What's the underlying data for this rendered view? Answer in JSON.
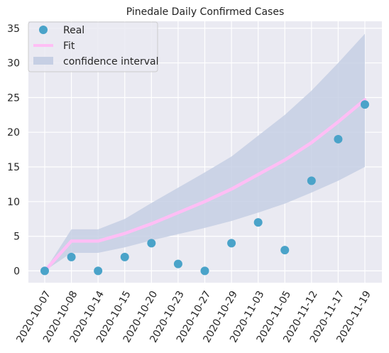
{
  "chart_data": {
    "type": "line",
    "title": "Pinedale Daily Confirmed Cases",
    "xlabel": "",
    "ylabel": "",
    "categories": [
      "2020-10-07",
      "2020-10-08",
      "2020-10-14",
      "2020-10-15",
      "2020-10-20",
      "2020-10-23",
      "2020-10-27",
      "2020-10-29",
      "2020-11-03",
      "2020-11-05",
      "2020-11-12",
      "2020-11-17",
      "2020-11-19"
    ],
    "ylim": [
      -1.7,
      36
    ],
    "yticks": [
      0,
      5,
      10,
      15,
      20,
      25,
      30,
      35
    ],
    "grid": true,
    "legend_position": "top-left",
    "series": [
      {
        "name": "Real",
        "kind": "scatter",
        "color": "#4aa3c9",
        "values": [
          0,
          2,
          0,
          2,
          4,
          1,
          0,
          4,
          7,
          3,
          13,
          19,
          24
        ]
      },
      {
        "name": "Fit",
        "kind": "line",
        "color": "#ffbef5",
        "values": [
          0,
          4.3,
          4.3,
          5.4,
          6.8,
          8.4,
          10.0,
          11.8,
          13.9,
          16.0,
          18.5,
          21.5,
          24.7
        ]
      },
      {
        "name": "confidence interval",
        "kind": "band",
        "color": "#c6cfe4",
        "lower": [
          0,
          2.6,
          2.6,
          3.4,
          4.4,
          5.3,
          6.2,
          7.2,
          8.4,
          9.7,
          11.3,
          13.0,
          15.0
        ],
        "upper": [
          0,
          6.0,
          6.0,
          7.5,
          9.8,
          12.0,
          14.2,
          16.5,
          19.5,
          22.5,
          26.0,
          30.0,
          34.2
        ]
      }
    ]
  }
}
